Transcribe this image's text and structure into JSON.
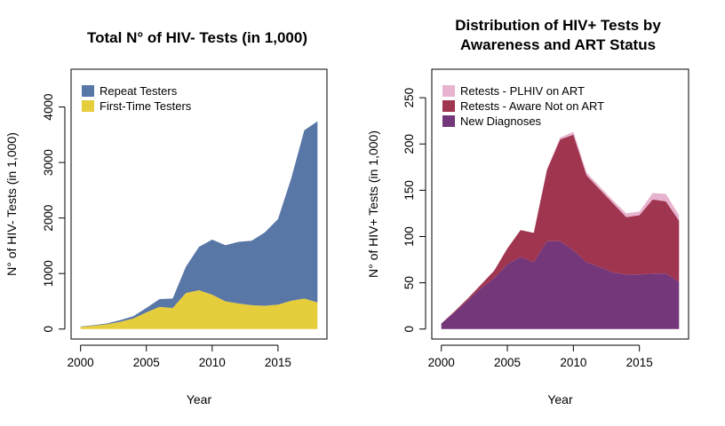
{
  "chart_data": [
    {
      "type": "area",
      "stacked": true,
      "title": "Total N° of HIV- Tests (in 1,000)",
      "xlabel": "Year",
      "ylabel": "N° of HIV- Tests (in 1,000)",
      "xlim": [
        2000,
        2018
      ],
      "ylim": [
        0,
        4500
      ],
      "xticks": [
        2000,
        2005,
        2010,
        2015
      ],
      "yticks": [
        0,
        1000,
        2000,
        3000,
        4000
      ],
      "legend_position": "top-left",
      "x": [
        2000,
        2001,
        2002,
        2003,
        2004,
        2005,
        2006,
        2007,
        2008,
        2009,
        2010,
        2011,
        2012,
        2013,
        2014,
        2015,
        2016,
        2017,
        2018
      ],
      "series": [
        {
          "name": "First-Time Testers",
          "color": "#e6cd3c",
          "values": [
            40,
            60,
            85,
            130,
            190,
            300,
            400,
            380,
            650,
            700,
            620,
            500,
            460,
            430,
            420,
            440,
            510,
            550,
            480
          ]
        },
        {
          "name": "Repeat Testers",
          "color": "#5876a6",
          "values": [
            5,
            10,
            15,
            30,
            40,
            80,
            140,
            170,
            470,
            780,
            990,
            1010,
            1110,
            1160,
            1320,
            1540,
            2200,
            3030,
            3260
          ]
        }
      ]
    },
    {
      "type": "area",
      "stacked": true,
      "title": "Distribution of HIV+ Tests by Awareness and ART Status",
      "title_lines": [
        "Distribution of HIV+ Tests by",
        "Awareness and ART Status"
      ],
      "xlabel": "Year",
      "ylabel": "N° of HIV+ Tests (in 1,000)",
      "xlim": [
        2000,
        2018
      ],
      "ylim": [
        0,
        270
      ],
      "xticks": [
        2000,
        2005,
        2010,
        2015
      ],
      "yticks": [
        0,
        50,
        100,
        150,
        200,
        250
      ],
      "legend_position": "top-left",
      "x": [
        2000,
        2001,
        2002,
        2003,
        2004,
        2005,
        2006,
        2007,
        2008,
        2009,
        2010,
        2011,
        2012,
        2013,
        2014,
        2015,
        2016,
        2017,
        2018
      ],
      "series": [
        {
          "name": "New Diagnoses",
          "color": "#74377a",
          "values": [
            6,
            18,
            31,
            44,
            55,
            70,
            78,
            72,
            95,
            95,
            85,
            72,
            67,
            61,
            59,
            59,
            60,
            60,
            51
          ]
        },
        {
          "name": "Retests - Aware Not on ART",
          "color": "#a03550",
          "values": [
            0,
            1,
            2,
            4,
            8,
            17,
            29,
            32,
            77,
            110,
            125,
            94,
            84,
            75,
            62,
            64,
            80,
            78,
            66
          ]
        },
        {
          "name": "Retests - PLHIV on ART",
          "color": "#e8b3cf",
          "values": [
            0,
            0,
            0,
            0,
            0,
            0,
            0,
            0,
            1,
            2,
            3,
            3,
            3,
            3,
            4,
            4,
            7,
            8,
            6
          ]
        }
      ]
    }
  ]
}
